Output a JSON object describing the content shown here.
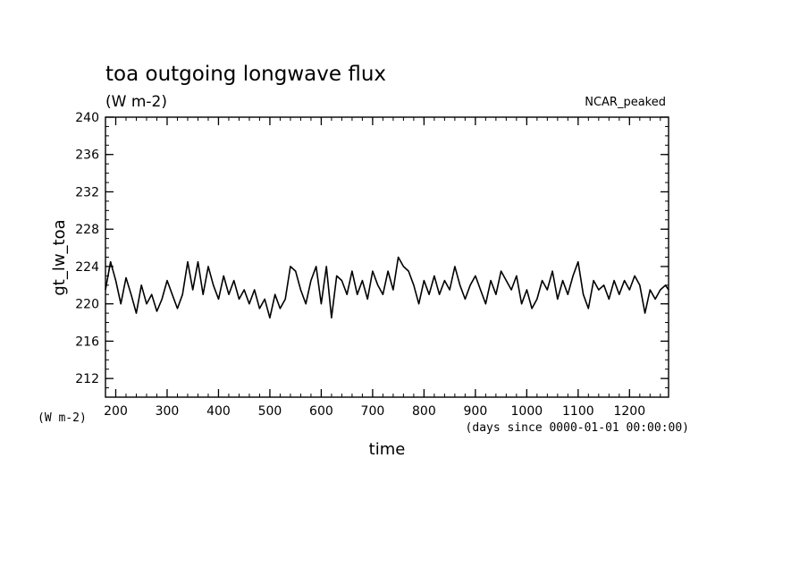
{
  "chart_data": {
    "type": "line",
    "title": "toa outgoing longwave flux",
    "subtitle": "(W m-2)",
    "corner_label": "NCAR_peaked",
    "ylabel": "gt_lw_toa",
    "y_units": "(W m-2)",
    "xlabel": "time",
    "x_units": "(days since 0000-01-01 00:00:00)",
    "xlim": [
      180,
      1276
    ],
    "ylim": [
      210,
      240
    ],
    "x_ticks": [
      200,
      300,
      400,
      500,
      600,
      700,
      800,
      900,
      1000,
      1100,
      1200
    ],
    "y_ticks": [
      212,
      216,
      220,
      224,
      228,
      232,
      236,
      240
    ],
    "x_minor_step": 20,
    "y_minor_step": 1,
    "grid": false,
    "legend": "none",
    "series": [
      {
        "color": "#000000",
        "x": [
          180,
          190,
          200,
          210,
          220,
          230,
          240,
          250,
          260,
          270,
          280,
          290,
          300,
          310,
          320,
          330,
          340,
          350,
          360,
          370,
          380,
          390,
          400,
          410,
          420,
          430,
          440,
          450,
          460,
          470,
          480,
          490,
          500,
          510,
          520,
          530,
          540,
          550,
          560,
          570,
          580,
          590,
          600,
          610,
          620,
          630,
          640,
          650,
          660,
          670,
          680,
          690,
          700,
          710,
          720,
          730,
          740,
          750,
          760,
          770,
          780,
          790,
          800,
          810,
          820,
          830,
          840,
          850,
          860,
          870,
          880,
          890,
          900,
          910,
          920,
          930,
          940,
          950,
          960,
          970,
          980,
          990,
          1000,
          1010,
          1020,
          1030,
          1040,
          1050,
          1060,
          1070,
          1080,
          1090,
          1100,
          1110,
          1120,
          1130,
          1140,
          1150,
          1160,
          1170,
          1180,
          1190,
          1200,
          1210,
          1220,
          1230,
          1240,
          1250,
          1260,
          1270,
          1276
        ],
        "y": [
          221.5,
          224.5,
          222.5,
          220.0,
          222.8,
          221.0,
          219.0,
          222.0,
          220.0,
          221.0,
          219.2,
          220.5,
          222.5,
          221.0,
          219.5,
          221.0,
          224.5,
          221.5,
          224.5,
          221.0,
          224.0,
          222.0,
          220.5,
          223.0,
          221.0,
          222.5,
          220.5,
          221.5,
          220.0,
          221.5,
          219.5,
          220.5,
          218.5,
          221.0,
          219.5,
          220.5,
          224.0,
          223.5,
          221.5,
          220.0,
          222.5,
          224.0,
          220.0,
          224.0,
          218.5,
          223.0,
          222.5,
          221.0,
          223.5,
          221.0,
          222.5,
          220.5,
          223.5,
          222.0,
          221.0,
          223.5,
          221.5,
          225.0,
          224.0,
          223.5,
          222.0,
          220.0,
          222.5,
          221.0,
          223.0,
          221.0,
          222.5,
          221.5,
          224.0,
          222.0,
          220.5,
          222.0,
          223.0,
          221.5,
          220.0,
          222.5,
          221.0,
          223.5,
          222.5,
          221.5,
          223.0,
          220.0,
          221.5,
          219.5,
          220.5,
          222.5,
          221.5,
          223.5,
          220.5,
          222.5,
          221.0,
          223.0,
          224.5,
          221.0,
          219.5,
          222.5,
          221.5,
          222.0,
          220.5,
          222.5,
          221.0,
          222.5,
          221.5,
          223.0,
          222.0,
          219.0,
          221.5,
          220.5,
          221.5,
          222.0,
          221.5
        ]
      }
    ]
  }
}
